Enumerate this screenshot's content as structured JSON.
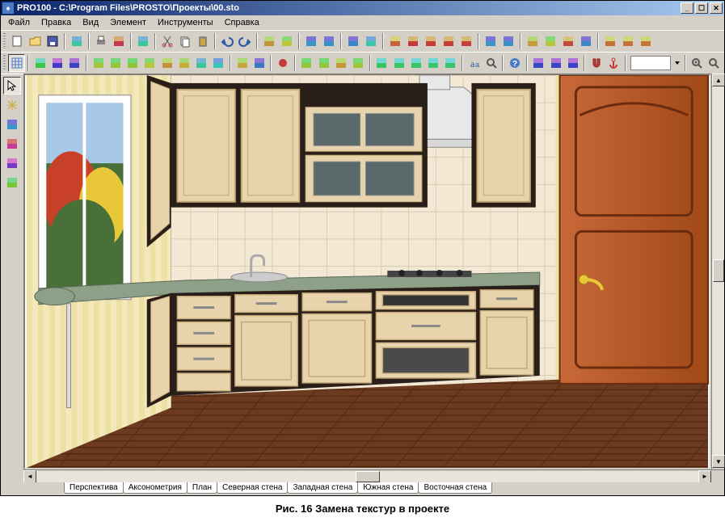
{
  "window": {
    "title": "PRO100 - C:\\Program Files\\PROSTO\\Проекты\\00.sto"
  },
  "menu": {
    "items": [
      "Файл",
      "Правка",
      "Вид",
      "Элемент",
      "Инструменты",
      "Справка"
    ]
  },
  "toolbar1_icons": [
    "new-file",
    "open-file",
    "save-file",
    "sep",
    "export",
    "sep",
    "print",
    "print-preview",
    "sep",
    "undo-del",
    "sep",
    "cut",
    "copy",
    "paste",
    "sep",
    "undo",
    "redo",
    "sep",
    "piece",
    "toggle-a",
    "sep",
    "struct-1",
    "struct-2",
    "sep",
    "sheet",
    "bom",
    "sep",
    "report-r",
    "report-a",
    "report-b",
    "report-c",
    "report-d",
    "sep",
    "show-a",
    "show-b",
    "sep",
    "catalog",
    "library",
    "material",
    "light",
    "sep",
    "palette-a",
    "palette-b",
    "palette-c"
  ],
  "toolbar2_icons": [
    "snap-grid",
    "sep",
    "move-xy",
    "move-z",
    "rotate",
    "sep",
    "align-l",
    "align-r",
    "align-t",
    "align-b",
    "distribute-h",
    "distribute-v",
    "center-h",
    "center-v",
    "sep",
    "group",
    "ungroup",
    "sep",
    "render-solid",
    "sep",
    "view-persp",
    "view-front",
    "view-side",
    "view-top",
    "sep",
    "cube-a",
    "cube-b",
    "cube-c",
    "cube-d",
    "cube-e",
    "sep",
    "text",
    "find",
    "sep",
    "help",
    "sep",
    "grid-a",
    "grid-b",
    "grid-c",
    "sep",
    "magnet",
    "anchor",
    "sep",
    "dim-box",
    "sep",
    "zoom-fit",
    "zoom"
  ],
  "side_icons": [
    "pointer",
    "light-tool",
    "rect-tool",
    "path-tool",
    "layers",
    "measure"
  ],
  "tabs": [
    "Перспектива",
    "Аксонометрия",
    "План",
    "Северная стена",
    "Западная стена",
    "Южная стена",
    "Восточная стена"
  ],
  "active_tab": 0,
  "caption": "Рис. 16  Замена текстур  в проекте",
  "scene": {
    "colors": {
      "wall_stripe_a": "#f4e9bb",
      "wall_stripe_b": "#ede0a4",
      "tile": "#f2e8d4",
      "tile_grout": "#d8cdb4",
      "floor": "#6b3a1f",
      "floor_dark": "#4a2512",
      "cabinet_face": "#e8d4ac",
      "cabinet_edge": "#c4a878",
      "cabinet_dark": "#2a1f18",
      "counter": "#8ea088",
      "door": "#b85c28",
      "door_dark": "#8a3e18",
      "window_frame": "#ffffff",
      "sky": "#a8c8e8",
      "foliage_red": "#c84028",
      "foliage_yellow": "#e8c838",
      "foliage_green": "#487038",
      "hood": "#e8e8e8",
      "handle": "#c8a838"
    }
  }
}
